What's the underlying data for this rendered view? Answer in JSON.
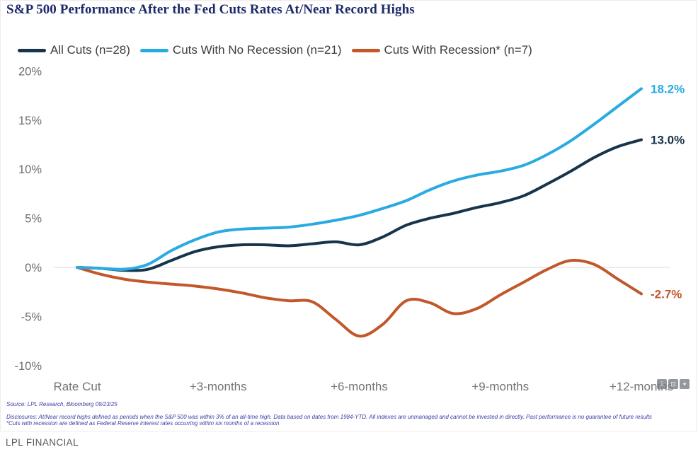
{
  "title": "S&P 500 Performance After the Fed Cuts Rates At/Near Record Highs",
  "colors": {
    "title": "#1c2a69",
    "all_cuts": "#17344a",
    "no_recession": "#29abe2",
    "recession": "#c2572a",
    "axis_text": "#6e6e6e",
    "zero_line": "#d8d8d8",
    "footnote_text": "#3c3ca6"
  },
  "legend": [
    {
      "label": "All Cuts (n=28)",
      "color": "#17344a"
    },
    {
      "label": "Cuts With No Recession (n=21)",
      "color": "#29abe2"
    },
    {
      "label": "Cuts With Recession* (n=7)",
      "color": "#c2572a"
    }
  ],
  "chart_data": {
    "type": "line",
    "title": "S&P 500 Performance After the Fed Cuts Rates At/Near Record Highs",
    "xlabel": "",
    "ylabel": "",
    "x_unit": "months after rate cut",
    "x": [
      0,
      0.5,
      1,
      1.5,
      2,
      2.5,
      3,
      3.5,
      4,
      4.5,
      5,
      5.5,
      6,
      6.5,
      7,
      7.5,
      8,
      8.5,
      9,
      9.5,
      10,
      10.5,
      11,
      11.5,
      12
    ],
    "x_tick_labels": [
      "Rate Cut",
      "+3-months",
      "+6-months",
      "+9-months",
      "+12-months"
    ],
    "x_tick_positions": [
      0,
      3,
      6,
      9,
      12
    ],
    "y_ticks": [
      20,
      15,
      10,
      5,
      0,
      -5,
      -10
    ],
    "y_tick_suffix": "%",
    "ylim": [
      -11.5,
      21
    ],
    "grid": "zero-line-only",
    "legend_position": "top-left",
    "series": [
      {
        "name": "All Cuts (n=28)",
        "color": "#17344a",
        "end_label": "13.0%",
        "end_value": 13.0,
        "values": [
          0,
          -0.1,
          -0.3,
          -0.2,
          0.7,
          1.6,
          2.1,
          2.3,
          2.3,
          2.2,
          2.4,
          2.6,
          2.3,
          3.1,
          4.3,
          5.0,
          5.5,
          6.1,
          6.6,
          7.3,
          8.5,
          9.8,
          11.2,
          12.3,
          13.0
        ]
      },
      {
        "name": "Cuts With Recession* (n=7)",
        "color": "#c2572a",
        "end_label": "-2.7%",
        "end_value": -2.7,
        "values": [
          0,
          -0.7,
          -1.2,
          -1.5,
          -1.7,
          -1.9,
          -2.2,
          -2.6,
          -3.1,
          -3.4,
          -3.5,
          -5.3,
          -7.0,
          -5.8,
          -3.4,
          -3.6,
          -4.7,
          -4.2,
          -2.8,
          -1.5,
          -0.2,
          0.7,
          0.3,
          -1.2,
          -2.7
        ]
      },
      {
        "name": "Cuts With No Recession (n=21)",
        "color": "#29abe2",
        "end_label": "18.2%",
        "end_value": 18.2,
        "values": [
          0,
          -0.1,
          -0.2,
          0.3,
          1.7,
          2.8,
          3.6,
          3.9,
          4.0,
          4.1,
          4.4,
          4.8,
          5.3,
          6.0,
          6.8,
          7.9,
          8.8,
          9.4,
          9.8,
          10.4,
          11.5,
          12.9,
          14.6,
          16.4,
          18.2
        ]
      }
    ]
  },
  "footnotes": {
    "source": "Source: LPL Research, Bloomberg 09/23/25",
    "disclosure1": "Disclosures: At/Near record highs defined as periods when the S&P 500 was within 3% of an all-time high. Data based on dates from 1984-YTD. All indexes are unmanaged and cannot be invested in directly. Past performance is no guarantee of future results",
    "disclosure2": "*Cuts with recession are defined as Federal Reserve interest rates occurring within six months of a recession"
  },
  "overlay_icons": [
    {
      "name": "download-icon",
      "glyph": "⇩"
    },
    {
      "name": "copy-image-icon",
      "glyph": "⊡"
    },
    {
      "name": "share-icon",
      "glyph": "✦"
    }
  ],
  "footer": {
    "brand": "LPL FINANCIAL"
  }
}
